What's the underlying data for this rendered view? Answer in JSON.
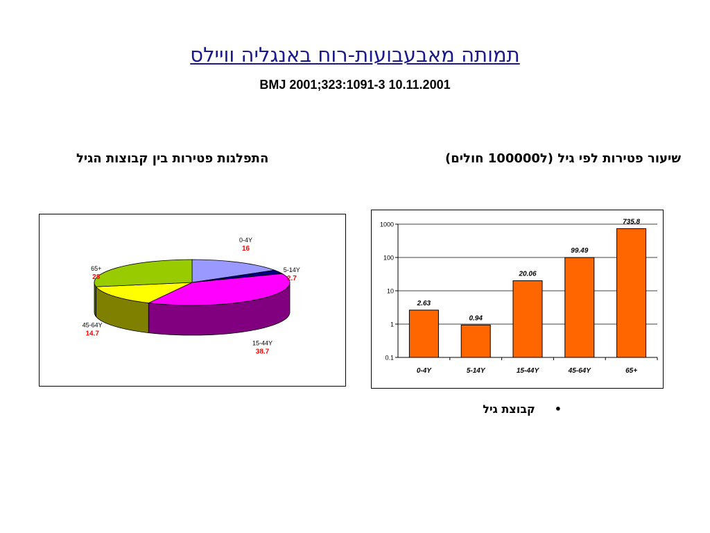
{
  "slide": {
    "title": "תמותה מאבעבועות-רוח באנגליה וויילס",
    "citation": "BMJ 2001;323:1091-3 10.11.2001",
    "bar_heading": "שיעור פטירות לפי גיל (ל100000 חולים)",
    "pie_heading": "התפלגות פטירות בין קבוצות הגיל",
    "bullet_marker": "•",
    "bullet_text": "קבוצת גיל"
  },
  "chart_data": [
    {
      "type": "bar",
      "title": "",
      "xlabel": "",
      "ylabel": "",
      "yscale": "log",
      "ylim": [
        0.1,
        1000
      ],
      "y_ticks": [
        "0.1",
        "1",
        "10",
        "100",
        "1000"
      ],
      "categories": [
        "0-4Y",
        "5-14Y",
        "15-44Y",
        "45-64Y",
        "65+"
      ],
      "values": [
        2.63,
        0.94,
        20.06,
        99.49,
        735.8
      ],
      "data_labels": [
        "2.63",
        "0.94",
        "20.06",
        "99.49",
        "735.8"
      ],
      "bar_color": "#ff6600",
      "grid": true
    },
    {
      "type": "pie",
      "style": "3d",
      "categories": [
        "0-4Y",
        "5-14Y",
        "15-44Y",
        "45-64Y",
        "65+"
      ],
      "values": [
        16,
        2.7,
        38.7,
        14.7,
        28
      ],
      "data_labels": [
        "16",
        "2.7",
        "38.7",
        "14.7",
        "28"
      ],
      "colors": [
        "#9999ff",
        "#000080",
        "#ff00ff",
        "#ffff00",
        "#99cc00"
      ],
      "value_label_color": "#ff0000"
    }
  ]
}
